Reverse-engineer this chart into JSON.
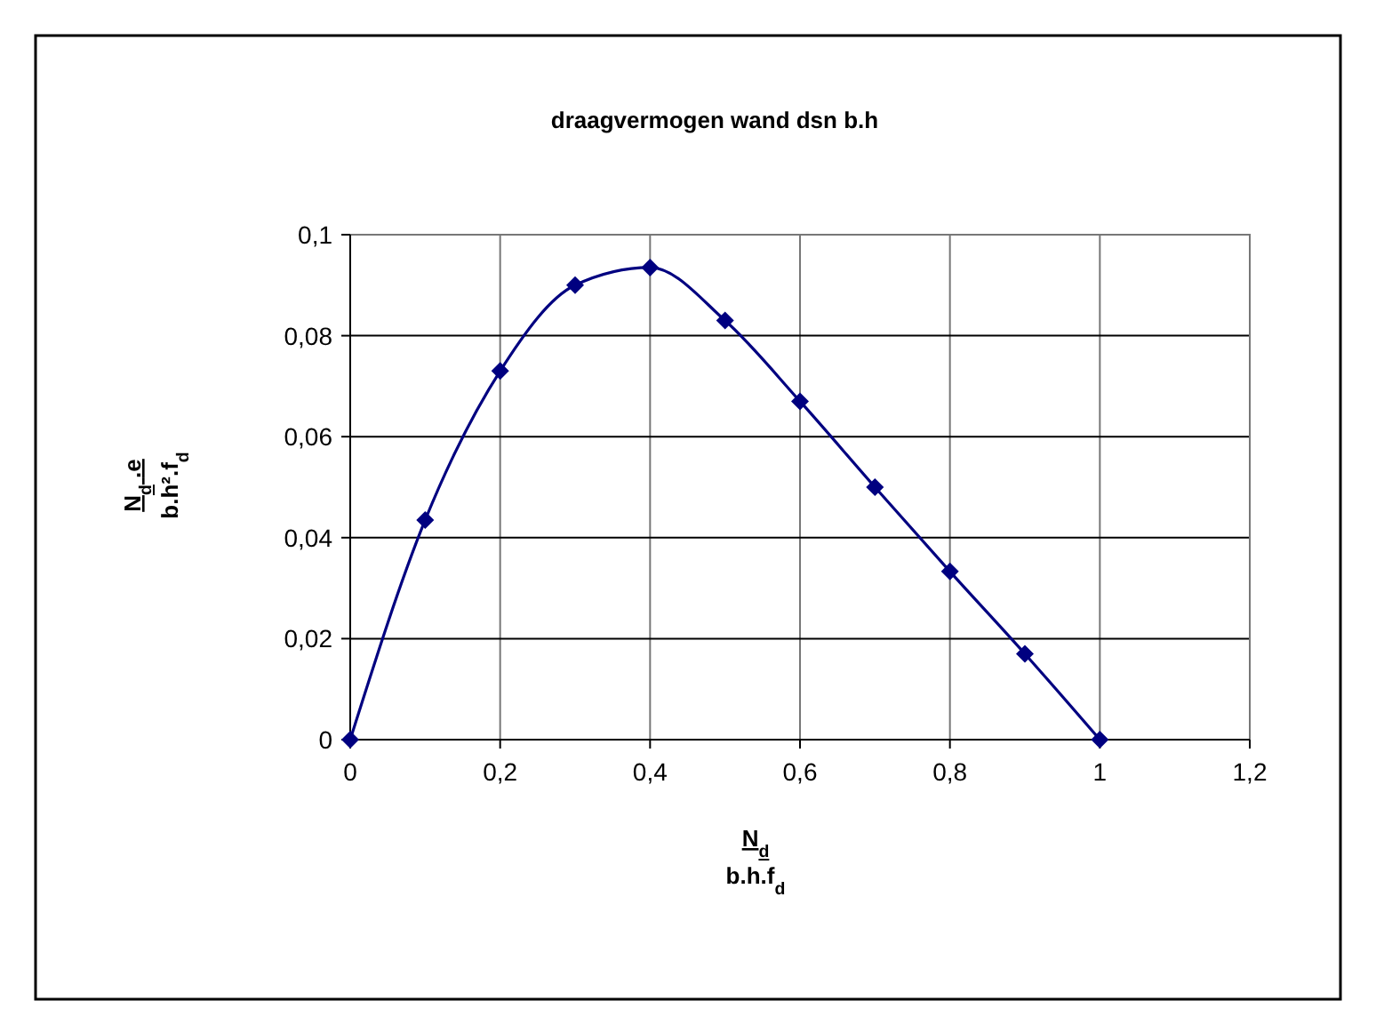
{
  "chart_data": {
    "type": "line",
    "title": "draagvermogen wand dsn b.h",
    "xlabel": "N$_{d}$\nb.h.f$_{d}$",
    "ylabel": "N$_{d}$.e\nb.h².f$_{d}$",
    "x": [
      0,
      0.1,
      0.2,
      0.3,
      0.4,
      0.5,
      0.6,
      0.7,
      0.8,
      0.9,
      1
    ],
    "series": [
      {
        "color": "#000080",
        "values": [
          0,
          0.0435,
          0.073,
          0.09,
          0.0935,
          0.083,
          0.067,
          0.05,
          0.0333,
          0.017,
          0
        ]
      }
    ],
    "xlim": [
      0,
      1.2
    ],
    "ylim": [
      0,
      0.1
    ],
    "xticks": [
      0,
      {
        "value": 0.2,
        "label": "0,2"
      },
      {
        "value": 0.4,
        "label": "0,4"
      },
      {
        "value": 0.6,
        "label": "0,6"
      },
      {
        "value": 0.8,
        "label": "0,8"
      },
      1,
      {
        "value": 1.2,
        "label": "1,2"
      }
    ],
    "yticks": [
      0,
      {
        "value": 0.02,
        "label": "0,02"
      },
      {
        "value": 0.04,
        "label": "0,04"
      },
      {
        "value": 0.06,
        "label": "0,06"
      },
      {
        "value": 0.08,
        "label": "0,08"
      },
      {
        "value": 0.1,
        "label": "0,1"
      }
    ],
    "grid": true,
    "marker": "diamond",
    "line_style": "solid"
  }
}
